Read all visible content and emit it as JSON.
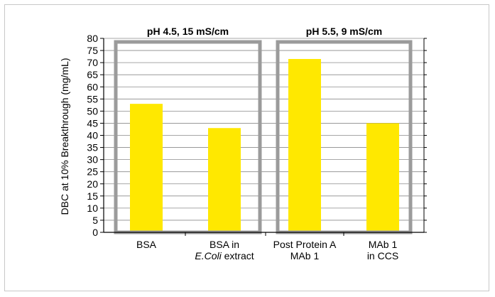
{
  "chart_data": {
    "type": "bar",
    "ylabel": "DBC at 10% Breakthrough (mg/mL)",
    "ylim": [
      0,
      80
    ],
    "yticks": [
      0,
      5,
      10,
      15,
      20,
      25,
      30,
      35,
      40,
      45,
      50,
      55,
      60,
      65,
      70,
      75,
      80
    ],
    "categories": [
      [
        "BSA"
      ],
      [
        "BSA in",
        "E.Coli extract"
      ],
      [
        "Post Protein A",
        "MAb 1"
      ],
      [
        "MAb 1",
        "in CCS"
      ]
    ],
    "values": [
      53,
      43,
      71.5,
      45
    ],
    "bar_color": "#ffe800",
    "groups": [
      {
        "label": "pH 4.5, 15 mS/cm",
        "categories": [
          0,
          1
        ]
      },
      {
        "label": "pH 5.5, 9 mS/cm",
        "categories": [
          2,
          3
        ]
      }
    ],
    "group_box_color": "#9b9b9b"
  }
}
